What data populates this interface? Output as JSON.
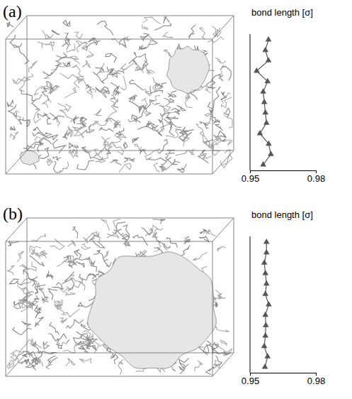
{
  "chart_data": [
    {
      "type": "line",
      "panel": "(a)",
      "x_label": "bond length [σ]",
      "categories": [
        null,
        null,
        null,
        null,
        null,
        null,
        null,
        null,
        null,
        null,
        null,
        null,
        null
      ],
      "values": [
        0.9584,
        0.957,
        0.9584,
        0.953,
        0.958,
        0.956,
        0.9565,
        0.957,
        0.9575,
        0.9545,
        0.9585,
        0.9595,
        0.956
      ],
      "xlim": [
        0.95,
        0.98
      ],
      "xticks": [
        0.95,
        0.98
      ],
      "tick_labels": "x",
      "marker": "triangle",
      "line_style": "solid",
      "color": "#555555"
    },
    {
      "type": "line",
      "panel": "(b)",
      "x_label": "bond length [σ]",
      "categories": [
        null,
        null,
        null,
        null,
        null,
        null,
        null,
        null,
        null,
        null,
        null,
        null,
        null
      ],
      "values": [
        0.9575,
        0.9575,
        0.9565,
        0.957,
        0.9575,
        0.957,
        0.9585,
        0.957,
        0.9572,
        0.957,
        0.9565,
        0.958,
        0.9568
      ],
      "xlim": [
        0.95,
        0.98
      ],
      "xticks": [
        0.95,
        0.98
      ],
      "tick_labels": "x",
      "marker": "triangle",
      "line_style": "solid",
      "color": "#555555"
    }
  ]
}
